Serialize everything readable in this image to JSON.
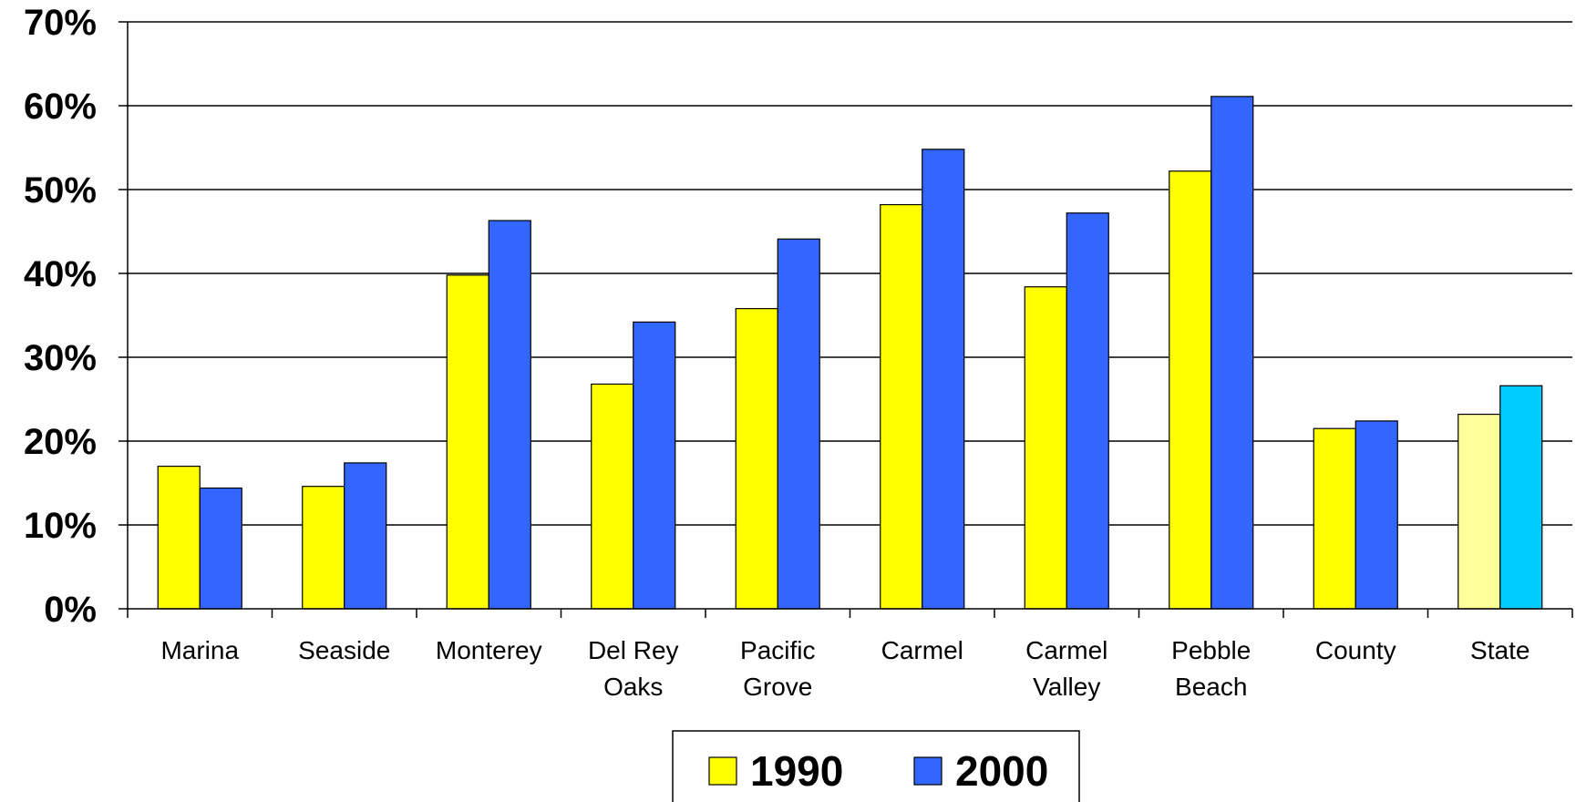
{
  "chart_data": {
    "type": "bar",
    "categories": [
      [
        "Marina"
      ],
      [
        "Seaside"
      ],
      [
        "Monterey"
      ],
      [
        "Del Rey",
        "Oaks"
      ],
      [
        "Pacific",
        "Grove"
      ],
      [
        "Carmel"
      ],
      [
        "Carmel",
        "Valley"
      ],
      [
        "Pebble",
        "Beach"
      ],
      [
        "County"
      ],
      [
        "State"
      ]
    ],
    "series": [
      {
        "name": "1990",
        "color": "#ffff00",
        "highlight_color": "#ffff99",
        "values": [
          17.0,
          14.6,
          39.8,
          26.8,
          35.8,
          48.2,
          38.4,
          52.2,
          21.5,
          23.2
        ]
      },
      {
        "name": "2000",
        "color": "#3366ff",
        "highlight_color": "#00ccff",
        "values": [
          14.4,
          17.4,
          46.3,
          34.2,
          44.1,
          54.8,
          47.2,
          61.1,
          22.4,
          26.6
        ]
      }
    ],
    "highlight_category_index": 9,
    "ylim": [
      0,
      70
    ],
    "yticks": [
      "0%",
      "10%",
      "20%",
      "30%",
      "40%",
      "50%",
      "60%",
      "70%"
    ],
    "grid": true,
    "legend_position": "bottom",
    "title": "",
    "xlabel": "",
    "ylabel": ""
  }
}
